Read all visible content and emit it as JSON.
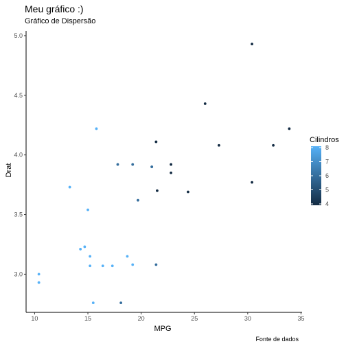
{
  "chart_data": {
    "type": "scatter",
    "title": "Meu gráfico :)",
    "subtitle": "Gráfico de Dispersão",
    "xlabel": "MPG",
    "ylabel": "Drat",
    "caption": "Fonte de dados",
    "xlim": [
      9.2,
      35.1
    ],
    "ylim": [
      2.68,
      5.04
    ],
    "xticks": [
      10,
      15,
      20,
      25,
      30,
      35
    ],
    "yticks": [
      3.0,
      3.5,
      4.0,
      4.5,
      5.0
    ],
    "xtick_labels": [
      "10",
      "15",
      "20",
      "25",
      "30",
      "35"
    ],
    "ytick_labels": [
      "3.0",
      "3.5",
      "4.0",
      "4.5",
      "5.0"
    ],
    "grid": false,
    "legend": {
      "title": "Cilindros",
      "position": "right",
      "min": 4,
      "max": 8,
      "ticks": [
        4,
        5,
        6,
        7,
        8
      ],
      "tick_labels": [
        "4",
        "5",
        "6",
        "7",
        "8"
      ],
      "color_low": "#132B43",
      "color_high": "#56B1F7"
    },
    "points": [
      {
        "x": 21.0,
        "y": 3.9,
        "cyl": 6
      },
      {
        "x": 21.0,
        "y": 3.9,
        "cyl": 6
      },
      {
        "x": 22.8,
        "y": 3.85,
        "cyl": 4
      },
      {
        "x": 21.4,
        "y": 3.08,
        "cyl": 6
      },
      {
        "x": 18.7,
        "y": 3.15,
        "cyl": 8
      },
      {
        "x": 18.1,
        "y": 2.76,
        "cyl": 6
      },
      {
        "x": 14.3,
        "y": 3.21,
        "cyl": 8
      },
      {
        "x": 24.4,
        "y": 3.69,
        "cyl": 4
      },
      {
        "x": 22.8,
        "y": 3.92,
        "cyl": 4
      },
      {
        "x": 19.2,
        "y": 3.92,
        "cyl": 6
      },
      {
        "x": 17.8,
        "y": 3.92,
        "cyl": 6
      },
      {
        "x": 16.4,
        "y": 3.07,
        "cyl": 8
      },
      {
        "x": 17.3,
        "y": 3.07,
        "cyl": 8
      },
      {
        "x": 15.2,
        "y": 3.07,
        "cyl": 8
      },
      {
        "x": 10.4,
        "y": 2.93,
        "cyl": 8
      },
      {
        "x": 10.4,
        "y": 3.0,
        "cyl": 8
      },
      {
        "x": 14.7,
        "y": 3.23,
        "cyl": 8
      },
      {
        "x": 32.4,
        "y": 4.08,
        "cyl": 4
      },
      {
        "x": 30.4,
        "y": 4.93,
        "cyl": 4
      },
      {
        "x": 33.9,
        "y": 4.22,
        "cyl": 4
      },
      {
        "x": 21.5,
        "y": 3.7,
        "cyl": 4
      },
      {
        "x": 15.5,
        "y": 2.76,
        "cyl": 8
      },
      {
        "x": 15.2,
        "y": 3.15,
        "cyl": 8
      },
      {
        "x": 13.3,
        "y": 3.73,
        "cyl": 8
      },
      {
        "x": 19.2,
        "y": 3.08,
        "cyl": 8
      },
      {
        "x": 27.3,
        "y": 4.08,
        "cyl": 4
      },
      {
        "x": 26.0,
        "y": 4.43,
        "cyl": 4
      },
      {
        "x": 30.4,
        "y": 3.77,
        "cyl": 4
      },
      {
        "x": 15.8,
        "y": 4.22,
        "cyl": 8
      },
      {
        "x": 19.7,
        "y": 3.62,
        "cyl": 6
      },
      {
        "x": 15.0,
        "y": 3.54,
        "cyl": 8
      },
      {
        "x": 21.4,
        "y": 4.11,
        "cyl": 4
      }
    ]
  }
}
